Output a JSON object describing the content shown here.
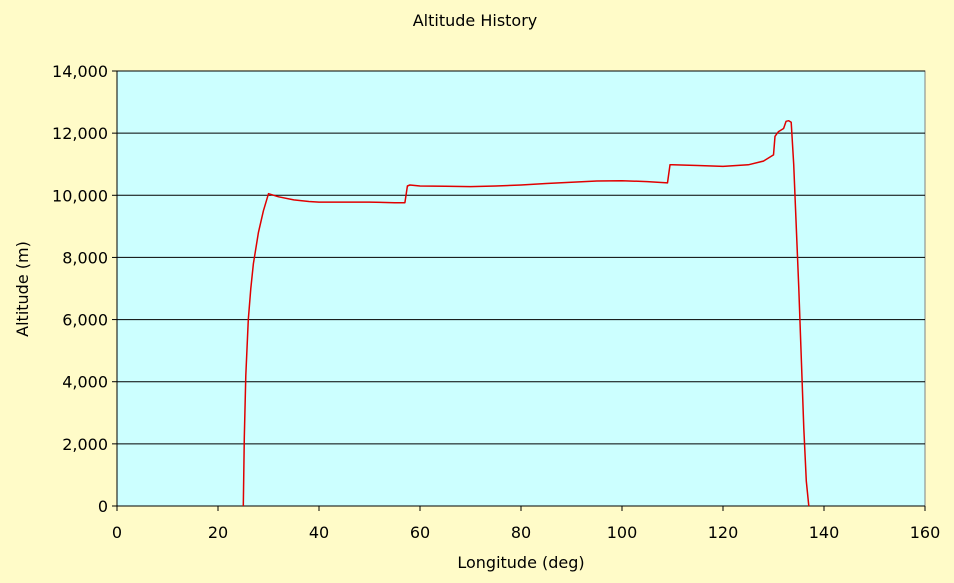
{
  "chart_data": {
    "type": "line",
    "title": "Altitude History",
    "xlabel": "Longitude (deg)",
    "ylabel": "Altitude (m)",
    "xlim": [
      0,
      160
    ],
    "ylim": [
      0,
      14000
    ],
    "x_ticks": [
      0,
      20,
      40,
      60,
      80,
      100,
      120,
      140,
      160
    ],
    "y_ticks": [
      0,
      2000,
      4000,
      6000,
      8000,
      10000,
      12000,
      14000
    ],
    "x_tick_labels": [
      "0",
      "20",
      "40",
      "60",
      "80",
      "100",
      "120",
      "140",
      "160"
    ],
    "y_tick_labels": [
      "0",
      "2,000",
      "4,000",
      "6,000",
      "8,000",
      "10,000",
      "12,000",
      "14,000"
    ],
    "grid": "horizontal",
    "legend": "none",
    "colors": {
      "page_background": "#fffbc8",
      "plot_background": "#ccffff",
      "line": "#e00000",
      "grid": "#000000"
    },
    "series": [
      {
        "color": "#e00000",
        "x": [
          25.0,
          25.2,
          25.5,
          26.0,
          26.5,
          27.0,
          28.0,
          29.0,
          30.0,
          32.0,
          35.0,
          38.0,
          40.0,
          45.0,
          50.0,
          55.0,
          57.0,
          57.5,
          58.0,
          60.0,
          65.0,
          70.0,
          75.0,
          80.0,
          85.0,
          90.0,
          95.0,
          100.0,
          105.0,
          109.0,
          109.5,
          110.0,
          115.0,
          120.0,
          125.0,
          128.0,
          130.0,
          130.3,
          131.0,
          132.0,
          132.5,
          133.0,
          133.5,
          134.0,
          135.0,
          136.0,
          136.5,
          137.0
        ],
        "values": [
          0,
          2200,
          4200,
          6000,
          7000,
          7800,
          8800,
          9500,
          10050,
          9950,
          9850,
          9800,
          9780,
          9780,
          9780,
          9760,
          9760,
          10300,
          10330,
          10300,
          10290,
          10280,
          10300,
          10330,
          10380,
          10420,
          10460,
          10470,
          10440,
          10400,
          10980,
          10980,
          10960,
          10930,
          10980,
          11100,
          11300,
          11900,
          12050,
          12150,
          12380,
          12400,
          12350,
          11000,
          7000,
          2500,
          800,
          0
        ]
      }
    ]
  }
}
